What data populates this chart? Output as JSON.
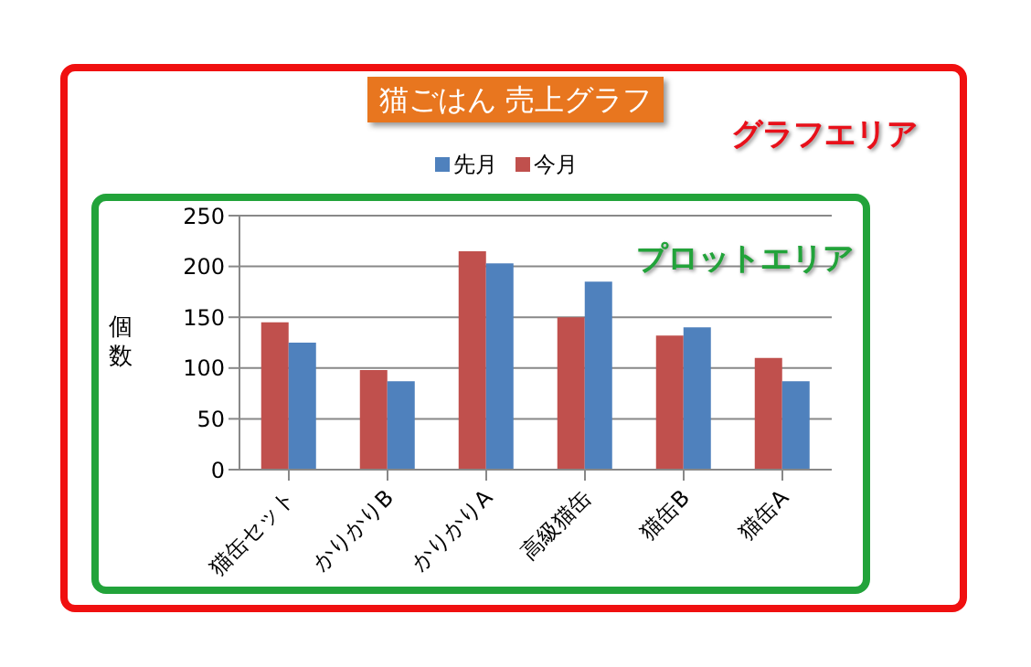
{
  "chart_data": {
    "type": "bar",
    "title": "猫ごはん 売上グラフ",
    "ylabel": "個数",
    "categories": [
      "猫缶セット",
      "かりかりB",
      "かりかりA",
      "高級猫缶",
      "猫缶B",
      "猫缶A"
    ],
    "series": [
      {
        "name": "先月",
        "color": "#4f81bd",
        "values": [
          125,
          87,
          203,
          185,
          140,
          87
        ]
      },
      {
        "name": "今月",
        "color": "#c0504d",
        "values": [
          145,
          98,
          215,
          150,
          132,
          110
        ]
      }
    ],
    "ylim": [
      0,
      250
    ],
    "yticks": [
      0,
      50,
      100,
      150,
      200,
      250
    ],
    "grid": "y",
    "legend": "top",
    "annotations": [
      "グラフエリア",
      "プロットエリア"
    ]
  }
}
